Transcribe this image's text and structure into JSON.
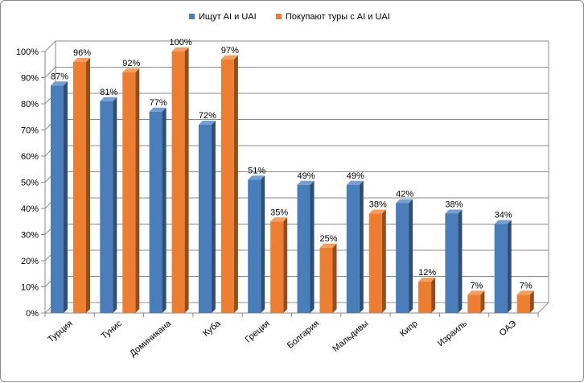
{
  "chart_data": {
    "type": "bar",
    "title": "",
    "xlabel": "",
    "ylabel": "",
    "categories": [
      "Турция",
      "Тунис",
      "Доминикана",
      "Куба",
      "Греция",
      "Болгария",
      "Мальдивы",
      "Кипр",
      "Израиль",
      "ОАЭ"
    ],
    "series": [
      {
        "name": "Ищут AI и UAI",
        "color": "#4a7ebb",
        "values": [
          87,
          81,
          77,
          72,
          51,
          49,
          49,
          42,
          38,
          34
        ]
      },
      {
        "name": "Покупают туры с AI и UAI",
        "color": "#ed7d31",
        "values": [
          96,
          92,
          100,
          97,
          35,
          25,
          38,
          12,
          7,
          7
        ]
      }
    ],
    "value_suffix": "%",
    "ylim": [
      0,
      100
    ],
    "yticks": [
      0,
      10,
      20,
      30,
      40,
      50,
      60,
      70,
      80,
      90,
      100
    ],
    "ytick_labels": [
      "0%",
      "10%",
      "20%",
      "30%",
      "40%",
      "50%",
      "60%",
      "70%",
      "80%",
      "90%",
      "100%"
    ],
    "grid": true,
    "legend_position": "top",
    "style": "3d-column"
  }
}
